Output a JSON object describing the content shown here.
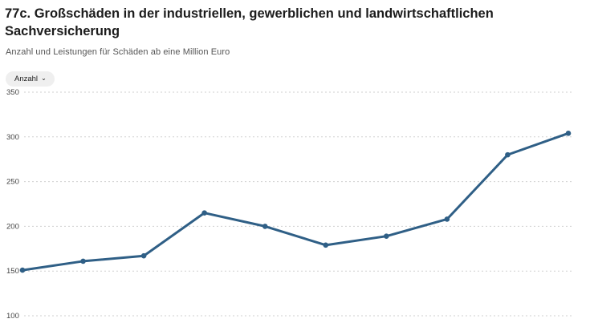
{
  "title": "77c. Großschäden in der industriellen, gewerblichen und landwirtschaftlichen Sachversicherung",
  "subtitle": "Anzahl und Leistungen für Schäden ab eine Million Euro",
  "dropdown": {
    "selected": "Anzahl",
    "icon": "chevron-down-icon"
  },
  "colors": {
    "line": "#2f5f86",
    "grid": "#cfcfcf"
  },
  "chart_data": {
    "type": "line",
    "title": "77c. Großschäden in der industriellen, gewerblichen und landwirtschaftlichen Sachversicherung",
    "subtitle": "Anzahl und Leistungen für Schäden ab eine Million Euro",
    "xlabel": "",
    "ylabel": "",
    "ylim": [
      100,
      350
    ],
    "yticks": [
      350,
      300,
      250,
      200,
      150,
      100
    ],
    "grid": true,
    "series": [
      {
        "values": [
          151,
          161,
          167,
          215,
          200,
          179,
          189,
          208,
          280,
          304
        ]
      }
    ]
  }
}
